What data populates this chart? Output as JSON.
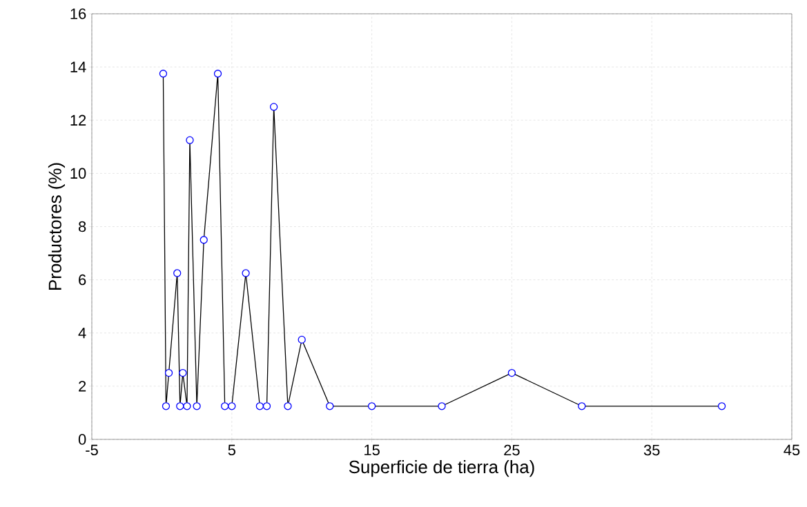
{
  "chart_data": {
    "type": "line",
    "xlabel": "Superficie de tierra (ha)",
    "ylabel": "Productores (%)",
    "x": [
      0.1,
      0.3,
      0.5,
      1.1,
      1.3,
      1.5,
      1.8,
      2.0,
      2.5,
      3.0,
      4.0,
      4.5,
      5.0,
      6.0,
      7.0,
      7.5,
      8.0,
      9.0,
      10.0,
      12.0,
      15.0,
      20.0,
      25.0,
      30.0,
      40.0
    ],
    "values": [
      13.75,
      1.25,
      2.5,
      6.25,
      1.25,
      2.5,
      1.25,
      11.25,
      1.25,
      7.5,
      13.75,
      1.25,
      1.25,
      6.25,
      1.25,
      1.25,
      12.5,
      1.25,
      3.75,
      1.25,
      1.25,
      1.25,
      2.5,
      1.25,
      1.25
    ],
    "color": "#000000",
    "marker": "circle",
    "line_style": "solid",
    "xlim": [
      -5,
      45
    ],
    "xticks": [
      -5,
      5,
      15,
      25,
      35,
      45
    ],
    "ylim": [
      0,
      16
    ],
    "yticks": [
      0,
      2,
      4,
      6,
      8,
      10,
      12,
      14,
      16
    ],
    "grid": true
  }
}
